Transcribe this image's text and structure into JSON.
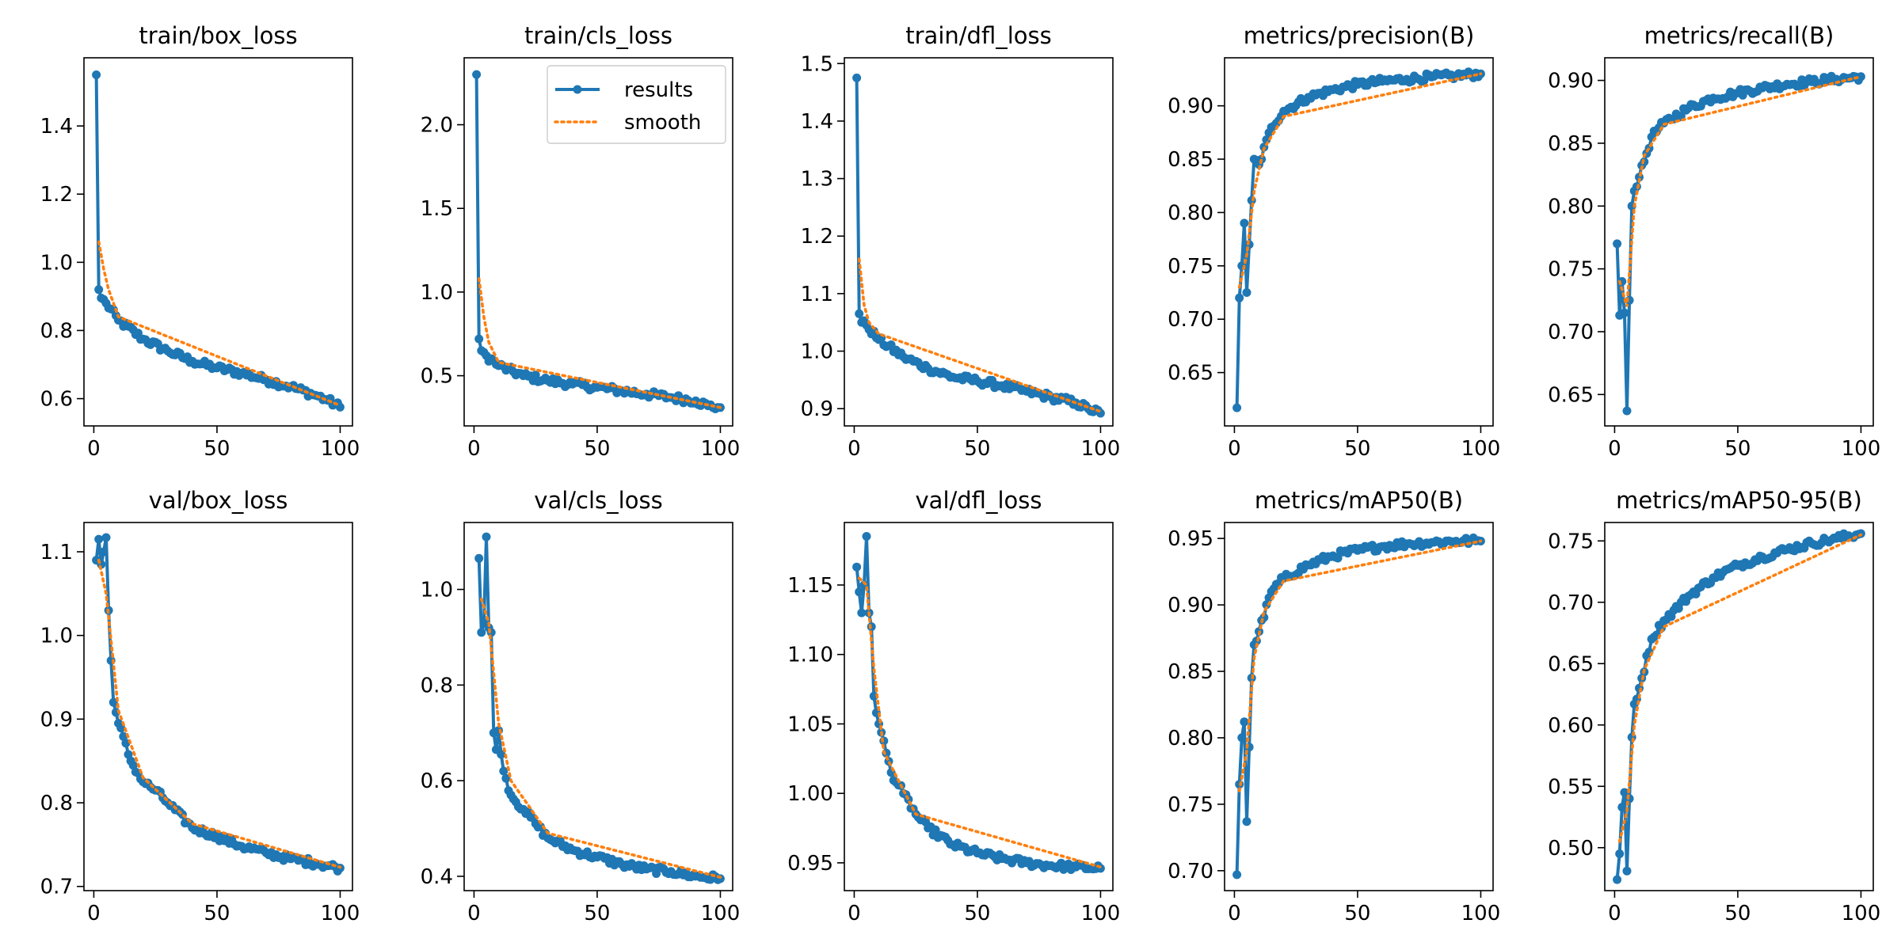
{
  "colors": {
    "results": "#1f77b4",
    "smooth": "#ff7f0e",
    "axes": "#000000",
    "background": "#ffffff"
  },
  "legend": {
    "placement": "top-right",
    "in_chart": 1,
    "entries": [
      "results",
      "smooth"
    ]
  },
  "chart_data": [
    {
      "type": "line",
      "title": "train/box_loss",
      "xlabel": "",
      "ylabel": "",
      "grid": false,
      "xlim": [
        -4,
        105
      ],
      "ylim": [
        0.52,
        1.6
      ],
      "xticks": [
        0,
        50,
        100
      ],
      "xtick_labels": [
        "0",
        "50",
        "100"
      ],
      "yticks": [
        0.6,
        0.8,
        1.0,
        1.2,
        1.4
      ],
      "ytick_labels": [
        "0.6",
        "0.8",
        "1.0",
        "1.2",
        "1.4"
      ],
      "key_points": [
        [
          1,
          1.55
        ],
        [
          2,
          0.92
        ],
        [
          3,
          0.895
        ],
        [
          5,
          0.88
        ],
        [
          10,
          0.83
        ],
        [
          20,
          0.775
        ],
        [
          30,
          0.74
        ],
        [
          40,
          0.71
        ],
        [
          50,
          0.69
        ],
        [
          60,
          0.675
        ],
        [
          70,
          0.655
        ],
        [
          80,
          0.635
        ],
        [
          90,
          0.61
        ],
        [
          95,
          0.595
        ],
        [
          100,
          0.575
        ]
      ],
      "smooth_points": [
        [
          2,
          1.06
        ],
        [
          4,
          0.98
        ],
        [
          6,
          0.92
        ],
        [
          10,
          0.84
        ],
        [
          100,
          0.58
        ]
      ],
      "series": [
        {
          "name": "results"
        },
        {
          "name": "smooth"
        }
      ]
    },
    {
      "type": "line",
      "title": "train/cls_loss",
      "xlabel": "",
      "ylabel": "",
      "grid": false,
      "xlim": [
        -4,
        105
      ],
      "ylim": [
        0.2,
        2.4
      ],
      "xticks": [
        0,
        50,
        100
      ],
      "xtick_labels": [
        "0",
        "50",
        "100"
      ],
      "yticks": [
        0.5,
        1.0,
        1.5,
        2.0
      ],
      "ytick_labels": [
        "0.5",
        "1.0",
        "1.5",
        "2.0"
      ],
      "key_points": [
        [
          1,
          2.3
        ],
        [
          2,
          0.72
        ],
        [
          3,
          0.65
        ],
        [
          5,
          0.62
        ],
        [
          10,
          0.56
        ],
        [
          20,
          0.5
        ],
        [
          30,
          0.47
        ],
        [
          40,
          0.45
        ],
        [
          50,
          0.43
        ],
        [
          60,
          0.41
        ],
        [
          70,
          0.39
        ],
        [
          80,
          0.37
        ],
        [
          90,
          0.35
        ],
        [
          95,
          0.32
        ],
        [
          100,
          0.31
        ]
      ],
      "smooth_points": [
        [
          2,
          1.08
        ],
        [
          4,
          0.85
        ],
        [
          6,
          0.7
        ],
        [
          10,
          0.58
        ],
        [
          100,
          0.31
        ]
      ],
      "series": [
        {
          "name": "results"
        },
        {
          "name": "smooth"
        }
      ]
    },
    {
      "type": "line",
      "title": "train/dfl_loss",
      "xlabel": "",
      "ylabel": "",
      "grid": false,
      "xlim": [
        -4,
        105
      ],
      "ylim": [
        0.87,
        1.51
      ],
      "xticks": [
        0,
        50,
        100
      ],
      "xtick_labels": [
        "0",
        "50",
        "100"
      ],
      "yticks": [
        0.9,
        1.0,
        1.1,
        1.2,
        1.3,
        1.4,
        1.5
      ],
      "ytick_labels": [
        "0.9",
        "1.0",
        "1.1",
        "1.2",
        "1.3",
        "1.4",
        "1.5"
      ],
      "key_points": [
        [
          1,
          1.475
        ],
        [
          2,
          1.065
        ],
        [
          3,
          1.05
        ],
        [
          5,
          1.045
        ],
        [
          10,
          1.02
        ],
        [
          20,
          0.99
        ],
        [
          30,
          0.97
        ],
        [
          40,
          0.955
        ],
        [
          50,
          0.948
        ],
        [
          60,
          0.94
        ],
        [
          70,
          0.93
        ],
        [
          80,
          0.92
        ],
        [
          90,
          0.91
        ],
        [
          95,
          0.9
        ],
        [
          100,
          0.892
        ]
      ],
      "smooth_points": [
        [
          2,
          1.16
        ],
        [
          4,
          1.08
        ],
        [
          6,
          1.05
        ],
        [
          10,
          1.03
        ],
        [
          100,
          0.895
        ]
      ],
      "series": [
        {
          "name": "results"
        },
        {
          "name": "smooth"
        }
      ]
    },
    {
      "type": "line",
      "title": "metrics/precision(B)",
      "xlabel": "",
      "ylabel": "",
      "grid": false,
      "xlim": [
        -4,
        105
      ],
      "ylim": [
        0.6,
        0.945
      ],
      "xticks": [
        0,
        50,
        100
      ],
      "xtick_labels": [
        "0",
        "50",
        "100"
      ],
      "yticks": [
        0.65,
        0.7,
        0.75,
        0.8,
        0.85,
        0.9
      ],
      "ytick_labels": [
        "0.65",
        "0.70",
        "0.75",
        "0.80",
        "0.85",
        "0.90"
      ],
      "key_points": [
        [
          1,
          0.617
        ],
        [
          2,
          0.72
        ],
        [
          3,
          0.75
        ],
        [
          4,
          0.79
        ],
        [
          5,
          0.725
        ],
        [
          6,
          0.77
        ],
        [
          8,
          0.85
        ],
        [
          10,
          0.845
        ],
        [
          15,
          0.88
        ],
        [
          20,
          0.895
        ],
        [
          30,
          0.908
        ],
        [
          40,
          0.915
        ],
        [
          50,
          0.92
        ],
        [
          60,
          0.923
        ],
        [
          70,
          0.925
        ],
        [
          80,
          0.927
        ],
        [
          90,
          0.928
        ],
        [
          100,
          0.93
        ]
      ],
      "smooth_points": [
        [
          2,
          0.73
        ],
        [
          5,
          0.76
        ],
        [
          8,
          0.82
        ],
        [
          12,
          0.86
        ],
        [
          20,
          0.89
        ],
        [
          100,
          0.93
        ]
      ],
      "series": [
        {
          "name": "results"
        },
        {
          "name": "smooth"
        }
      ]
    },
    {
      "type": "line",
      "title": "metrics/recall(B)",
      "xlabel": "",
      "ylabel": "",
      "grid": false,
      "xlim": [
        -4,
        105
      ],
      "ylim": [
        0.625,
        0.918
      ],
      "xticks": [
        0,
        50,
        100
      ],
      "xtick_labels": [
        "0",
        "50",
        "100"
      ],
      "yticks": [
        0.65,
        0.7,
        0.75,
        0.8,
        0.85,
        0.9
      ],
      "ytick_labels": [
        "0.65",
        "0.70",
        "0.75",
        "0.80",
        "0.85",
        "0.90"
      ],
      "key_points": [
        [
          1,
          0.77
        ],
        [
          2,
          0.713
        ],
        [
          3,
          0.74
        ],
        [
          4,
          0.715
        ],
        [
          5,
          0.637
        ],
        [
          6,
          0.725
        ],
        [
          7,
          0.8
        ],
        [
          8,
          0.812
        ],
        [
          10,
          0.823
        ],
        [
          15,
          0.855
        ],
        [
          20,
          0.866
        ],
        [
          30,
          0.878
        ],
        [
          40,
          0.886
        ],
        [
          50,
          0.89
        ],
        [
          60,
          0.894
        ],
        [
          70,
          0.897
        ],
        [
          80,
          0.899
        ],
        [
          90,
          0.901
        ],
        [
          100,
          0.903
        ]
      ],
      "smooth_points": [
        [
          2,
          0.74
        ],
        [
          5,
          0.72
        ],
        [
          8,
          0.8
        ],
        [
          12,
          0.84
        ],
        [
          20,
          0.865
        ],
        [
          100,
          0.903
        ]
      ],
      "series": [
        {
          "name": "results"
        },
        {
          "name": "smooth"
        }
      ]
    },
    {
      "type": "line",
      "title": "val/box_loss",
      "xlabel": "",
      "ylabel": "",
      "grid": false,
      "xlim": [
        -4,
        105
      ],
      "ylim": [
        0.695,
        1.135
      ],
      "xticks": [
        0,
        50,
        100
      ],
      "xtick_labels": [
        "0",
        "50",
        "100"
      ],
      "yticks": [
        0.7,
        0.8,
        0.9,
        1.0,
        1.1
      ],
      "ytick_labels": [
        "0.7",
        "0.8",
        "0.9",
        "1.0",
        "1.1"
      ],
      "key_points": [
        [
          1,
          1.09
        ],
        [
          2,
          1.115
        ],
        [
          3,
          1.085
        ],
        [
          4,
          1.1
        ],
        [
          5,
          1.117
        ],
        [
          6,
          1.03
        ],
        [
          7,
          0.97
        ],
        [
          8,
          0.92
        ],
        [
          10,
          0.895
        ],
        [
          15,
          0.85
        ],
        [
          20,
          0.825
        ],
        [
          25,
          0.815
        ],
        [
          30,
          0.8
        ],
        [
          40,
          0.77
        ],
        [
          50,
          0.76
        ],
        [
          60,
          0.748
        ],
        [
          70,
          0.74
        ],
        [
          80,
          0.733
        ],
        [
          90,
          0.728
        ],
        [
          100,
          0.722
        ]
      ],
      "smooth_points": [
        [
          2,
          1.09
        ],
        [
          5,
          1.05
        ],
        [
          10,
          0.91
        ],
        [
          20,
          0.83
        ],
        [
          40,
          0.775
        ],
        [
          100,
          0.723
        ]
      ],
      "series": [
        {
          "name": "results"
        },
        {
          "name": "smooth"
        }
      ]
    },
    {
      "type": "line",
      "title": "val/cls_loss",
      "xlabel": "",
      "ylabel": "",
      "grid": false,
      "xlim": [
        -4,
        105
      ],
      "ylim": [
        0.37,
        1.14
      ],
      "xticks": [
        0,
        50,
        100
      ],
      "xtick_labels": [
        "0",
        "50",
        "100"
      ],
      "yticks": [
        0.4,
        0.6,
        0.8,
        1.0
      ],
      "ytick_labels": [
        "0.4",
        "0.6",
        "0.8",
        "1.0"
      ],
      "key_points": [
        [
          2,
          1.065
        ],
        [
          3,
          0.91
        ],
        [
          4,
          0.93
        ],
        [
          5,
          1.11
        ],
        [
          6,
          0.92
        ],
        [
          7,
          0.91
        ],
        [
          8,
          0.7
        ],
        [
          9,
          0.665
        ],
        [
          10,
          0.705
        ],
        [
          12,
          0.62
        ],
        [
          15,
          0.57
        ],
        [
          20,
          0.54
        ],
        [
          25,
          0.51
        ],
        [
          30,
          0.48
        ],
        [
          40,
          0.455
        ],
        [
          50,
          0.44
        ],
        [
          60,
          0.425
        ],
        [
          70,
          0.415
        ],
        [
          80,
          0.41
        ],
        [
          90,
          0.4
        ],
        [
          100,
          0.395
        ]
      ],
      "smooth_points": [
        [
          3,
          0.98
        ],
        [
          6,
          0.93
        ],
        [
          10,
          0.72
        ],
        [
          15,
          0.6
        ],
        [
          30,
          0.49
        ],
        [
          100,
          0.398
        ]
      ],
      "series": [
        {
          "name": "results"
        },
        {
          "name": "smooth"
        }
      ]
    },
    {
      "type": "line",
      "title": "val/dfl_loss",
      "xlabel": "",
      "ylabel": "",
      "grid": false,
      "xlim": [
        -4,
        105
      ],
      "ylim": [
        0.93,
        1.195
      ],
      "xticks": [
        0,
        50,
        100
      ],
      "xtick_labels": [
        "0",
        "50",
        "100"
      ],
      "yticks": [
        0.95,
        1.0,
        1.05,
        1.1,
        1.15
      ],
      "ytick_labels": [
        "0.95",
        "1.00",
        "1.05",
        "1.10",
        "1.15"
      ],
      "key_points": [
        [
          1,
          1.163
        ],
        [
          2,
          1.145
        ],
        [
          3,
          1.13
        ],
        [
          4,
          1.15
        ],
        [
          5,
          1.185
        ],
        [
          6,
          1.13
        ],
        [
          7,
          1.12
        ],
        [
          8,
          1.07
        ],
        [
          10,
          1.05
        ],
        [
          15,
          1.015
        ],
        [
          20,
          1.0
        ],
        [
          25,
          0.985
        ],
        [
          30,
          0.975
        ],
        [
          40,
          0.963
        ],
        [
          50,
          0.957
        ],
        [
          60,
          0.953
        ],
        [
          70,
          0.95
        ],
        [
          80,
          0.948
        ],
        [
          90,
          0.947
        ],
        [
          100,
          0.946
        ]
      ],
      "smooth_points": [
        [
          2,
          1.155
        ],
        [
          5,
          1.15
        ],
        [
          8,
          1.09
        ],
        [
          12,
          1.03
        ],
        [
          25,
          0.985
        ],
        [
          100,
          0.947
        ]
      ],
      "series": [
        {
          "name": "results"
        },
        {
          "name": "smooth"
        }
      ]
    },
    {
      "type": "line",
      "title": "metrics/mAP50(B)",
      "xlabel": "",
      "ylabel": "",
      "grid": false,
      "xlim": [
        -4,
        105
      ],
      "ylim": [
        0.685,
        0.962
      ],
      "xticks": [
        0,
        50,
        100
      ],
      "xtick_labels": [
        "0",
        "50",
        "100"
      ],
      "yticks": [
        0.7,
        0.75,
        0.8,
        0.85,
        0.9,
        0.95
      ],
      "ytick_labels": [
        "0.70",
        "0.75",
        "0.80",
        "0.85",
        "0.90",
        "0.95"
      ],
      "key_points": [
        [
          1,
          0.697
        ],
        [
          2,
          0.765
        ],
        [
          3,
          0.8
        ],
        [
          4,
          0.812
        ],
        [
          5,
          0.737
        ],
        [
          6,
          0.793
        ],
        [
          7,
          0.845
        ],
        [
          8,
          0.87
        ],
        [
          10,
          0.88
        ],
        [
          15,
          0.91
        ],
        [
          20,
          0.92
        ],
        [
          30,
          0.93
        ],
        [
          40,
          0.937
        ],
        [
          50,
          0.941
        ],
        [
          60,
          0.944
        ],
        [
          70,
          0.946
        ],
        [
          80,
          0.947
        ],
        [
          90,
          0.948
        ],
        [
          100,
          0.948
        ]
      ],
      "smooth_points": [
        [
          2,
          0.76
        ],
        [
          5,
          0.79
        ],
        [
          8,
          0.86
        ],
        [
          12,
          0.895
        ],
        [
          20,
          0.918
        ],
        [
          100,
          0.948
        ]
      ],
      "series": [
        {
          "name": "results"
        },
        {
          "name": "smooth"
        }
      ]
    },
    {
      "type": "line",
      "title": "metrics/mAP50-95(B)",
      "xlabel": "",
      "ylabel": "",
      "grid": false,
      "xlim": [
        -4,
        105
      ],
      "ylim": [
        0.465,
        0.765
      ],
      "xticks": [
        0,
        50,
        100
      ],
      "xtick_labels": [
        "0",
        "50",
        "100"
      ],
      "yticks": [
        0.5,
        0.55,
        0.6,
        0.65,
        0.7,
        0.75
      ],
      "ytick_labels": [
        "0.50",
        "0.55",
        "0.60",
        "0.65",
        "0.70",
        "0.75"
      ],
      "key_points": [
        [
          1,
          0.474
        ],
        [
          2,
          0.495
        ],
        [
          3,
          0.533
        ],
        [
          4,
          0.545
        ],
        [
          5,
          0.481
        ],
        [
          6,
          0.54
        ],
        [
          7,
          0.59
        ],
        [
          8,
          0.617
        ],
        [
          10,
          0.63
        ],
        [
          15,
          0.67
        ],
        [
          20,
          0.685
        ],
        [
          30,
          0.705
        ],
        [
          40,
          0.72
        ],
        [
          50,
          0.73
        ],
        [
          60,
          0.737
        ],
        [
          70,
          0.743
        ],
        [
          80,
          0.748
        ],
        [
          90,
          0.752
        ],
        [
          100,
          0.756
        ]
      ],
      "smooth_points": [
        [
          2,
          0.505
        ],
        [
          5,
          0.53
        ],
        [
          8,
          0.6
        ],
        [
          12,
          0.645
        ],
        [
          20,
          0.68
        ],
        [
          100,
          0.755
        ]
      ],
      "series": [
        {
          "name": "results"
        },
        {
          "name": "smooth"
        }
      ]
    }
  ]
}
